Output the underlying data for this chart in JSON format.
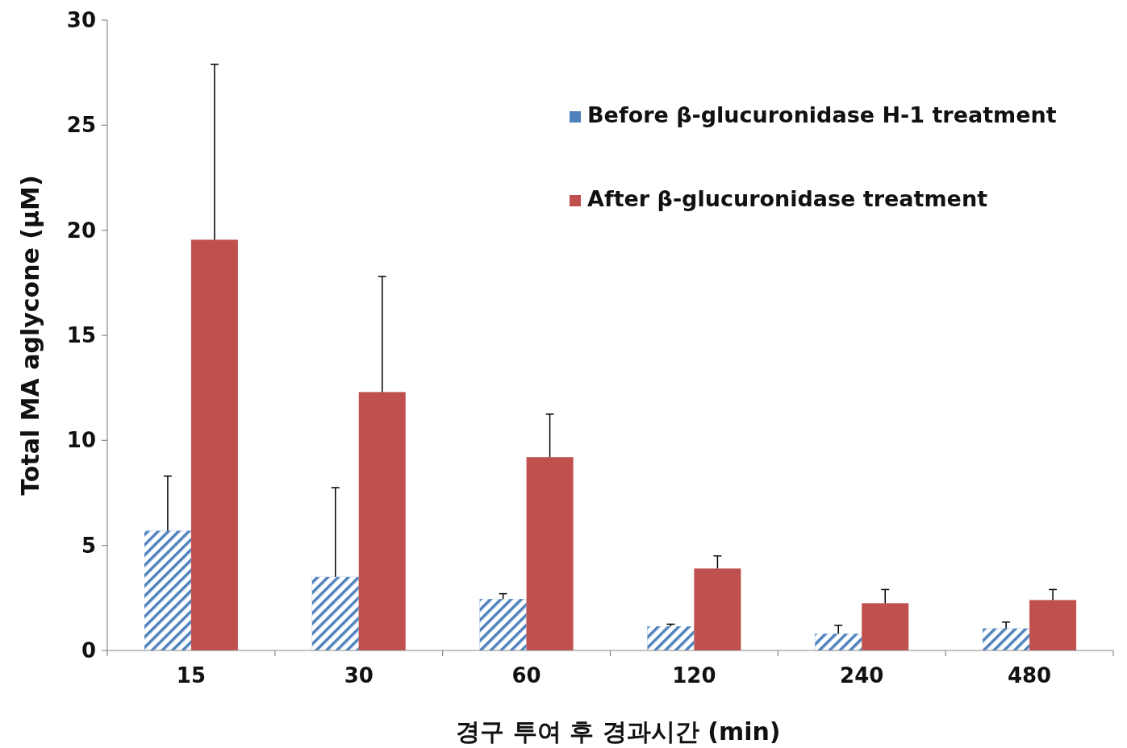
{
  "chart_data": {
    "type": "bar",
    "categories": [
      "15",
      "30",
      "60",
      "120",
      "240",
      "480"
    ],
    "xlabel": "경구 투여 후 경과시간 (min)",
    "ylabel": "Total MA aglycone (μM)",
    "ylim": [
      0,
      30
    ],
    "yticks": [
      0,
      5,
      10,
      15,
      20,
      25,
      30
    ],
    "grid": false,
    "legend": "top right",
    "series": [
      {
        "name": "Before β-glucuronidase H-1 treatment",
        "color": "#4f81bd",
        "values": [
          5.7,
          3.5,
          2.45,
          1.15,
          0.8,
          1.05
        ],
        "errors": [
          [
            5.7,
            8.3
          ],
          [
            3.5,
            7.75
          ],
          [
            2.45,
            2.7
          ],
          [
            1.15,
            1.25
          ],
          [
            0.8,
            1.2
          ],
          [
            1.05,
            1.35
          ]
        ]
      },
      {
        "name": "After β-glucuronidase treatment",
        "color": "#c0504d",
        "values": [
          19.55,
          12.3,
          9.2,
          3.9,
          2.25,
          2.4
        ],
        "errors": [
          [
            19.55,
            27.9
          ],
          [
            12.3,
            17.8
          ],
          [
            9.2,
            11.25
          ],
          [
            3.9,
            4.5
          ],
          [
            2.25,
            2.9
          ],
          [
            2.4,
            2.9
          ]
        ]
      }
    ]
  }
}
